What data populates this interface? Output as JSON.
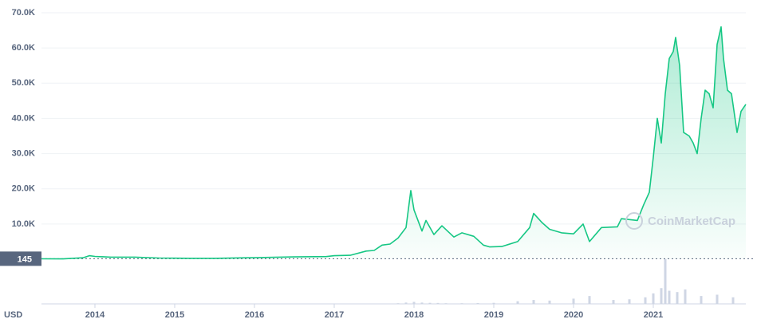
{
  "chart_data": {
    "type": "area",
    "x": [
      2013.33,
      2013.6,
      2013.85,
      2013.93,
      2014.0,
      2014.2,
      2014.5,
      2014.8,
      2015.0,
      2015.2,
      2015.5,
      2015.9,
      2016.0,
      2016.5,
      2016.9,
      2017.0,
      2017.2,
      2017.4,
      2017.5,
      2017.6,
      2017.7,
      2017.8,
      2017.9,
      2017.96,
      2018.0,
      2018.1,
      2018.15,
      2018.25,
      2018.35,
      2018.5,
      2018.6,
      2018.75,
      2018.87,
      2018.95,
      2019.1,
      2019.3,
      2019.45,
      2019.5,
      2019.6,
      2019.7,
      2019.85,
      2020.0,
      2020.12,
      2020.2,
      2020.35,
      2020.55,
      2020.6,
      2020.8,
      2020.88,
      2020.95,
      2021.0,
      2021.05,
      2021.1,
      2021.15,
      2021.2,
      2021.25,
      2021.28,
      2021.33,
      2021.38,
      2021.45,
      2021.5,
      2021.55,
      2021.6,
      2021.65,
      2021.7,
      2021.75,
      2021.8,
      2021.85,
      2021.88,
      2021.93,
      2021.98,
      2022.05,
      2022.1,
      2022.16
    ],
    "values": [
      120,
      100,
      400,
      1000,
      800,
      600,
      600,
      350,
      300,
      250,
      260,
      400,
      430,
      650,
      750,
      1000,
      1100,
      2300,
      2500,
      4000,
      4300,
      6000,
      9000,
      19500,
      14000,
      8000,
      11000,
      7000,
      9500,
      6300,
      7500,
      6500,
      4000,
      3500,
      3600,
      5000,
      9000,
      13000,
      10500,
      8500,
      7500,
      7200,
      10000,
      5000,
      9000,
      9200,
      11500,
      11000,
      15500,
      19000,
      29000,
      40000,
      33000,
      47000,
      57000,
      59000,
      63000,
      55000,
      36000,
      35000,
      33000,
      30000,
      40000,
      48000,
      47000,
      43000,
      61000,
      66000,
      57000,
      48000,
      47000,
      36000,
      42000,
      44000
    ],
    "color": "#16c784",
    "xlim": [
      2013.33,
      2022.16
    ],
    "xticks": [
      2014,
      2015,
      2016,
      2017,
      2018,
      2019,
      2020,
      2021
    ],
    "ylim": [
      0,
      70000
    ],
    "yticks": [
      {
        "value": 10000,
        "label": "10.0K"
      },
      {
        "value": 20000,
        "label": "20.0K"
      },
      {
        "value": 30000,
        "label": "30.0K"
      },
      {
        "value": 40000,
        "label": "40.0K"
      },
      {
        "value": 50000,
        "label": "50.0K"
      },
      {
        "value": 60000,
        "label": "60.0K"
      },
      {
        "value": 70000,
        "label": "70.0K"
      }
    ],
    "grid": true,
    "reference_price": 145,
    "currency": "USD",
    "watermark": "CoinMarketCap",
    "volume": {
      "x": [
        2017.8,
        2017.9,
        2018.0,
        2018.1,
        2018.2,
        2018.3,
        2018.4,
        2018.6,
        2018.8,
        2019.0,
        2019.3,
        2019.5,
        2019.7,
        2020.0,
        2020.2,
        2020.5,
        2020.7,
        2020.9,
        2021.0,
        2021.1,
        2021.15,
        2021.2,
        2021.3,
        2021.4,
        2021.6,
        2021.8,
        2022.0
      ],
      "values": [
        5,
        10,
        15,
        10,
        8,
        7,
        5,
        5,
        6,
        8,
        20,
        30,
        25,
        40,
        60,
        30,
        35,
        50,
        80,
        120,
        340,
        100,
        90,
        110,
        60,
        70,
        50
      ],
      "color": "#cfd6e4",
      "ylim": [
        0,
        340
      ]
    }
  }
}
